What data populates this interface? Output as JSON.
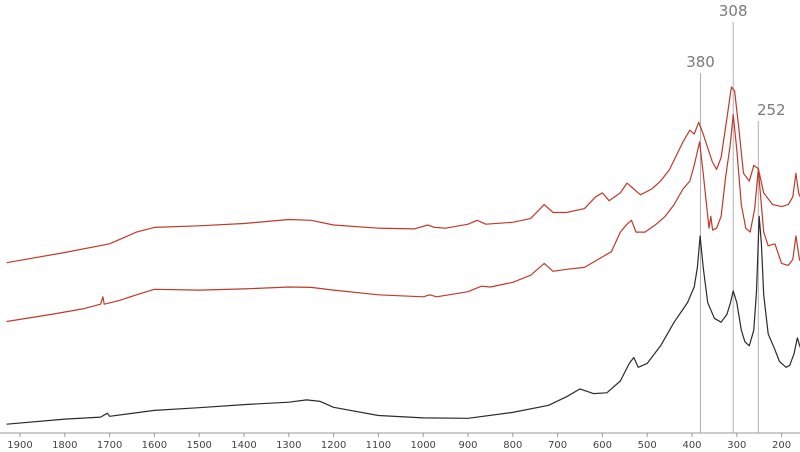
{
  "chart_data": {
    "type": "line",
    "title": "",
    "xlabel": "",
    "ylabel": "",
    "x_reversed": true,
    "xlim": [
      1930,
      150
    ],
    "ylim": [
      0,
      1
    ],
    "grid": false,
    "legend": "none",
    "x_ticks": [
      "1900",
      "1800",
      "1700",
      "1600",
      "1500",
      "1400",
      "1300",
      "1200",
      "1100",
      "1000",
      "900",
      "800",
      "700",
      "600",
      "500",
      "400",
      "300",
      "200"
    ],
    "tick_values": [
      1900,
      1800,
      1700,
      1600,
      1500,
      1400,
      1300,
      1200,
      1100,
      1000,
      900,
      800,
      700,
      600,
      500,
      400,
      300,
      200
    ],
    "annotations": [
      {
        "text": "380",
        "x": 381
      },
      {
        "text": "308",
        "x": 308
      },
      {
        "text": "252",
        "x": 252
      }
    ],
    "series": [
      {
        "color": "#c0392b",
        "points": [
          [
            1930,
            0.432
          ],
          [
            1800,
            0.458
          ],
          [
            1700,
            0.48
          ],
          [
            1640,
            0.51
          ],
          [
            1600,
            0.522
          ],
          [
            1500,
            0.526
          ],
          [
            1400,
            0.532
          ],
          [
            1300,
            0.542
          ],
          [
            1250,
            0.54
          ],
          [
            1200,
            0.528
          ],
          [
            1100,
            0.52
          ],
          [
            1020,
            0.518
          ],
          [
            990,
            0.528
          ],
          [
            975,
            0.522
          ],
          [
            950,
            0.52
          ],
          [
            900,
            0.53
          ],
          [
            880,
            0.54
          ],
          [
            860,
            0.53
          ],
          [
            800,
            0.535
          ],
          [
            760,
            0.545
          ],
          [
            730,
            0.58
          ],
          [
            710,
            0.56
          ],
          [
            680,
            0.56
          ],
          [
            640,
            0.57
          ],
          [
            615,
            0.6
          ],
          [
            600,
            0.61
          ],
          [
            585,
            0.59
          ],
          [
            560,
            0.61
          ],
          [
            545,
            0.635
          ],
          [
            530,
            0.62
          ],
          [
            515,
            0.605
          ],
          [
            490,
            0.62
          ],
          [
            470,
            0.64
          ],
          [
            450,
            0.67
          ],
          [
            420,
            0.74
          ],
          [
            405,
            0.77
          ],
          [
            395,
            0.76
          ],
          [
            385,
            0.79
          ],
          [
            375,
            0.76
          ],
          [
            355,
            0.69
          ],
          [
            345,
            0.67
          ],
          [
            335,
            0.7
          ],
          [
            322,
            0.8
          ],
          [
            312,
            0.88
          ],
          [
            305,
            0.87
          ],
          [
            296,
            0.78
          ],
          [
            285,
            0.66
          ],
          [
            272,
            0.64
          ],
          [
            262,
            0.68
          ],
          [
            252,
            0.672
          ],
          [
            240,
            0.61
          ],
          [
            220,
            0.58
          ],
          [
            200,
            0.575
          ],
          [
            185,
            0.58
          ],
          [
            175,
            0.6
          ],
          [
            168,
            0.66
          ],
          [
            162,
            0.61
          ],
          [
            155,
            0.59
          ],
          [
            150,
            0.58
          ]
        ]
      },
      {
        "color": "#c0392b",
        "points": [
          [
            1930,
            0.282
          ],
          [
            1830,
            0.3
          ],
          [
            1760,
            0.314
          ],
          [
            1720,
            0.326
          ],
          [
            1715,
            0.345
          ],
          [
            1712,
            0.326
          ],
          [
            1680,
            0.335
          ],
          [
            1640,
            0.35
          ],
          [
            1600,
            0.364
          ],
          [
            1500,
            0.362
          ],
          [
            1400,
            0.365
          ],
          [
            1300,
            0.37
          ],
          [
            1250,
            0.369
          ],
          [
            1200,
            0.362
          ],
          [
            1100,
            0.35
          ],
          [
            1000,
            0.345
          ],
          [
            985,
            0.35
          ],
          [
            970,
            0.345
          ],
          [
            900,
            0.358
          ],
          [
            870,
            0.372
          ],
          [
            850,
            0.37
          ],
          [
            800,
            0.382
          ],
          [
            760,
            0.4
          ],
          [
            730,
            0.43
          ],
          [
            710,
            0.41
          ],
          [
            680,
            0.415
          ],
          [
            640,
            0.42
          ],
          [
            610,
            0.44
          ],
          [
            595,
            0.45
          ],
          [
            580,
            0.46
          ],
          [
            560,
            0.51
          ],
          [
            545,
            0.53
          ],
          [
            535,
            0.54
          ],
          [
            525,
            0.51
          ],
          [
            505,
            0.51
          ],
          [
            480,
            0.53
          ],
          [
            460,
            0.55
          ],
          [
            440,
            0.58
          ],
          [
            420,
            0.62
          ],
          [
            405,
            0.64
          ],
          [
            395,
            0.68
          ],
          [
            383,
            0.74
          ],
          [
            375,
            0.66
          ],
          [
            362,
            0.52
          ],
          [
            358,
            0.55
          ],
          [
            354,
            0.515
          ],
          [
            345,
            0.52
          ],
          [
            335,
            0.55
          ],
          [
            325,
            0.65
          ],
          [
            315,
            0.73
          ],
          [
            308,
            0.81
          ],
          [
            300,
            0.72
          ],
          [
            290,
            0.58
          ],
          [
            280,
            0.52
          ],
          [
            270,
            0.51
          ],
          [
            260,
            0.57
          ],
          [
            252,
            0.67
          ],
          [
            246,
            0.59
          ],
          [
            240,
            0.51
          ],
          [
            230,
            0.475
          ],
          [
            215,
            0.48
          ],
          [
            200,
            0.43
          ],
          [
            185,
            0.425
          ],
          [
            175,
            0.44
          ],
          [
            168,
            0.5
          ],
          [
            160,
            0.44
          ],
          [
            150,
            0.42
          ]
        ]
      },
      {
        "color": "#2b2b2b",
        "points": [
          [
            1930,
            0.02
          ],
          [
            1800,
            0.033
          ],
          [
            1720,
            0.038
          ],
          [
            1705,
            0.048
          ],
          [
            1700,
            0.04
          ],
          [
            1600,
            0.055
          ],
          [
            1500,
            0.062
          ],
          [
            1400,
            0.07
          ],
          [
            1300,
            0.076
          ],
          [
            1260,
            0.082
          ],
          [
            1230,
            0.078
          ],
          [
            1200,
            0.063
          ],
          [
            1100,
            0.042
          ],
          [
            1000,
            0.036
          ],
          [
            900,
            0.035
          ],
          [
            800,
            0.05
          ],
          [
            720,
            0.068
          ],
          [
            680,
            0.09
          ],
          [
            650,
            0.11
          ],
          [
            620,
            0.098
          ],
          [
            590,
            0.1
          ],
          [
            560,
            0.13
          ],
          [
            540,
            0.175
          ],
          [
            530,
            0.19
          ],
          [
            520,
            0.165
          ],
          [
            500,
            0.175
          ],
          [
            470,
            0.22
          ],
          [
            440,
            0.28
          ],
          [
            410,
            0.33
          ],
          [
            395,
            0.37
          ],
          [
            388,
            0.42
          ],
          [
            382,
            0.5
          ],
          [
            375,
            0.42
          ],
          [
            365,
            0.33
          ],
          [
            350,
            0.29
          ],
          [
            335,
            0.28
          ],
          [
            322,
            0.3
          ],
          [
            314,
            0.33
          ],
          [
            308,
            0.36
          ],
          [
            300,
            0.33
          ],
          [
            290,
            0.26
          ],
          [
            282,
            0.23
          ],
          [
            272,
            0.22
          ],
          [
            262,
            0.26
          ],
          [
            256,
            0.36
          ],
          [
            250,
            0.55
          ],
          [
            245,
            0.48
          ],
          [
            240,
            0.35
          ],
          [
            230,
            0.25
          ],
          [
            215,
            0.21
          ],
          [
            205,
            0.18
          ],
          [
            190,
            0.165
          ],
          [
            182,
            0.17
          ],
          [
            172,
            0.2
          ],
          [
            165,
            0.24
          ],
          [
            158,
            0.215
          ],
          [
            150,
            0.18
          ]
        ]
      }
    ]
  }
}
